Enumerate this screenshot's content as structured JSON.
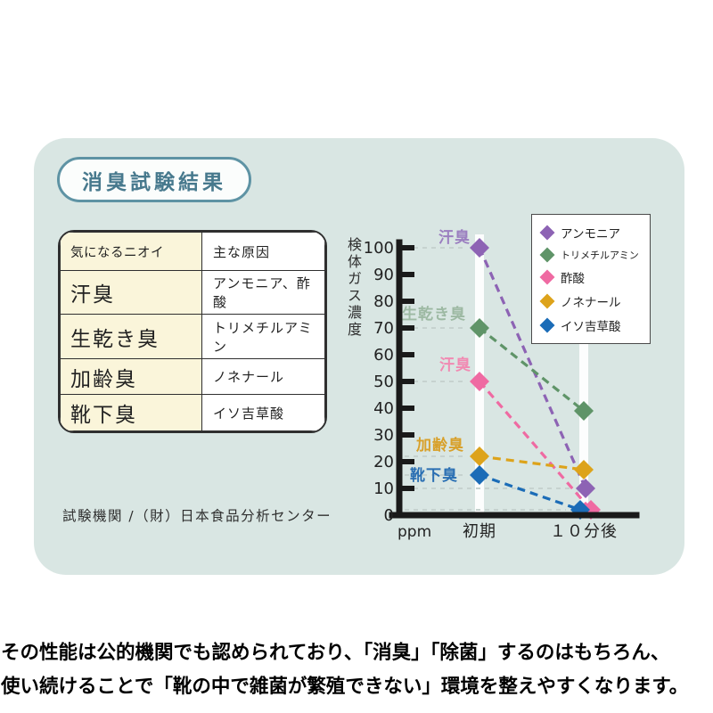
{
  "card": {
    "title_badge": "消臭試験結果",
    "caption": "試験機関 /（財）日本食品分析センター"
  },
  "odor_table": {
    "headers": [
      "気になるニオイ",
      "主な原因"
    ],
    "rows": [
      {
        "odor": "汗臭",
        "cause": "アンモニア、酢酸"
      },
      {
        "odor": "生乾き臭",
        "cause": "トリメチルアミン"
      },
      {
        "odor": "加齢臭",
        "cause": "ノネナール"
      },
      {
        "odor": "靴下臭",
        "cause": "イソ吉草酸"
      }
    ]
  },
  "chart_data": {
    "type": "line",
    "title": "消臭試験結果",
    "ylabel": "検体ガス濃度",
    "unit": "ppm",
    "categories": [
      "初期",
      "１０分後"
    ],
    "ylim": [
      0,
      100
    ],
    "ytick_step": 10,
    "grid": "dashed leader lines to points",
    "legend_position": "top-right",
    "line_style": "dashed with diamond markers",
    "series": [
      {
        "name": "アンモニア",
        "color": "#8d63b4",
        "label": "汗臭",
        "label_color": "#9b7fc0",
        "values": [
          100,
          10
        ]
      },
      {
        "name": "トリメチルアミン",
        "color": "#5f9468",
        "label": "生乾き臭",
        "label_color": "#9db9a3",
        "values": [
          70,
          39
        ]
      },
      {
        "name": "酢酸",
        "color": "#ef6aa2",
        "label": "汗臭",
        "label_color": "#f18ab2",
        "values": [
          50,
          2
        ]
      },
      {
        "name": "ノネナール",
        "color": "#dda31b",
        "label": "加齢臭",
        "label_color": "#d8a02a",
        "values": [
          22,
          17
        ]
      },
      {
        "name": "イソ吉草酸",
        "color": "#1b6cb7",
        "label": "靴下臭",
        "label_color": "#2a6fb3",
        "values": [
          15,
          2
        ]
      }
    ]
  },
  "footer": {
    "line1": "その性能は公的機関でも認められており、「消臭」「除菌」するのはもちろん、",
    "line2": "使い続けることで「靴の中で雑菌が繁殖できない」環境を整えやすくなります。"
  },
  "colors": {
    "card_bg": "#d9e6e3",
    "table_left_bg": "#faf5da",
    "badge_border": "#5e93a4",
    "badge_text": "#47798d",
    "axis": "#1a1a1a",
    "leader_dash": "#c6d2cf",
    "column_band": "#ffffff"
  }
}
